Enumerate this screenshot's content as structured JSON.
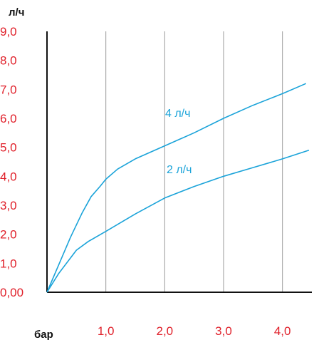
{
  "chart_data": {
    "type": "line",
    "ylabel": "л/ч",
    "xlabel": "бар",
    "ylim": [
      0,
      9
    ],
    "xlim": [
      0,
      4.5
    ],
    "grid": "vertical",
    "y_ticks": [
      "0,00",
      "1,0",
      "2,0",
      "3,0",
      "4,0",
      "5,0",
      "6,0",
      "7,0",
      "8,0",
      "9,0"
    ],
    "y_tick_values": [
      0,
      1,
      2,
      3,
      4,
      5,
      6,
      7,
      8,
      9
    ],
    "x_ticks": [
      "1,0",
      "2,0",
      "3,0",
      "4,0"
    ],
    "x_tick_values": [
      1,
      2,
      3,
      4
    ],
    "series": [
      {
        "name": "4 л/ч",
        "color": "#1aa3d9",
        "x": [
          0,
          0.2,
          0.4,
          0.6,
          0.75,
          0.9,
          1.0,
          1.2,
          1.5,
          2.0,
          2.5,
          3.0,
          3.5,
          4.0,
          4.4
        ],
        "y": [
          0,
          0.95,
          1.9,
          2.75,
          3.3,
          3.65,
          3.9,
          4.25,
          4.6,
          5.05,
          5.5,
          6.0,
          6.45,
          6.85,
          7.2
        ]
      },
      {
        "name": "2 л/ч",
        "color": "#1aa3d9",
        "x": [
          0,
          0.2,
          0.5,
          0.7,
          1.0,
          1.5,
          2.0,
          2.5,
          3.0,
          3.5,
          4.0,
          4.45
        ],
        "y": [
          0,
          0.65,
          1.45,
          1.75,
          2.1,
          2.7,
          3.25,
          3.65,
          4.0,
          4.3,
          4.6,
          4.9
        ]
      }
    ]
  },
  "colors": {
    "tick_label": "#e0202a",
    "axis": "#111111",
    "grid": "#9a9a9a",
    "series_label": "#1aa3d9"
  }
}
